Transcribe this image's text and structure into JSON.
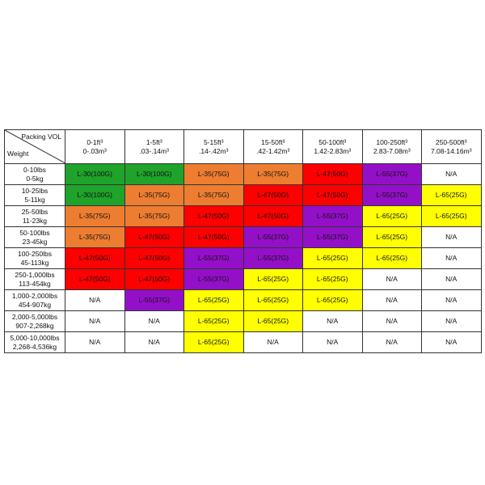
{
  "table": {
    "corner": {
      "top": "Packing VOL",
      "bottom": "Weight"
    },
    "columns": [
      [
        "0-1ft³",
        "0-.03m³"
      ],
      [
        "1-5ft³",
        ".03-.14m³"
      ],
      [
        "5-15ft³",
        ".14-.42m³"
      ],
      [
        "15-50ft³",
        ".42-1.42m³"
      ],
      [
        "50-100ft³",
        "1.42-2.83m³"
      ],
      [
        "100-250ft³",
        "2.83-7.08m³"
      ],
      [
        "250-500ft³",
        "7.08-14.16m³"
      ]
    ],
    "rows": [
      {
        "label": [
          "0-10lbs",
          "0-5kg"
        ],
        "cells": [
          {
            "text": "L-30(100G)",
            "color": "#1fa32a"
          },
          {
            "text": "L-30(100G)",
            "color": "#1fa32a"
          },
          {
            "text": "L-35(75G)",
            "color": "#ed7d31"
          },
          {
            "text": "L-35(75G)",
            "color": "#ed7d31"
          },
          {
            "text": "L-47(50G)",
            "color": "#ff0000"
          },
          {
            "text": "L-55(37G)",
            "color": "#9410c8"
          },
          {
            "text": "N/A",
            "color": "#ffffff"
          }
        ]
      },
      {
        "label": [
          "10-25lbs",
          "5-11kg"
        ],
        "cells": [
          {
            "text": "L-30(100G)",
            "color": "#1fa32a"
          },
          {
            "text": "L-35(75G)",
            "color": "#ed7d31"
          },
          {
            "text": "L-35(75G)",
            "color": "#ed7d31"
          },
          {
            "text": "L-47(50G)",
            "color": "#ff0000"
          },
          {
            "text": "L-47(50G)",
            "color": "#ff0000"
          },
          {
            "text": "L-55(37G)",
            "color": "#9410c8"
          },
          {
            "text": "L-65(25G)",
            "color": "#ffff00"
          }
        ]
      },
      {
        "label": [
          "25-50lbs",
          "11-23kg"
        ],
        "cells": [
          {
            "text": "L-35(75G)",
            "color": "#ed7d31"
          },
          {
            "text": "L-35(75G)",
            "color": "#ed7d31"
          },
          {
            "text": "L-47(50G)",
            "color": "#ff0000"
          },
          {
            "text": "L-47(50G)",
            "color": "#ff0000"
          },
          {
            "text": "L-55(37G)",
            "color": "#9410c8"
          },
          {
            "text": "L-65(25G)",
            "color": "#ffff00"
          },
          {
            "text": "L-65(25G)",
            "color": "#ffff00"
          }
        ]
      },
      {
        "label": [
          "50-100lbs",
          "23-45kg"
        ],
        "cells": [
          {
            "text": "L-35(75G)",
            "color": "#ed7d31"
          },
          {
            "text": "L-47(50G)",
            "color": "#ff0000"
          },
          {
            "text": "L-47(50G)",
            "color": "#ff0000"
          },
          {
            "text": "L-55(37G)",
            "color": "#9410c8"
          },
          {
            "text": "L-55(37G)",
            "color": "#9410c8"
          },
          {
            "text": "L-65(25G)",
            "color": "#ffff00"
          },
          {
            "text": "N/A",
            "color": "#ffffff"
          }
        ]
      },
      {
        "label": [
          "100-250lbs",
          "45-113kg"
        ],
        "cells": [
          {
            "text": "L-47(50G)",
            "color": "#ff0000"
          },
          {
            "text": "L-47(50G)",
            "color": "#ff0000"
          },
          {
            "text": "L-55(37G)",
            "color": "#9410c8"
          },
          {
            "text": "L-55(37G)",
            "color": "#9410c8"
          },
          {
            "text": "L-65(25G)",
            "color": "#ffff00"
          },
          {
            "text": "L-65(25G)",
            "color": "#ffff00"
          },
          {
            "text": "N/A",
            "color": "#ffffff"
          }
        ]
      },
      {
        "label": [
          "250-1,000lbs",
          "113-454kg"
        ],
        "cells": [
          {
            "text": "L-47(50G)",
            "color": "#ff0000"
          },
          {
            "text": "L-47(50G)",
            "color": "#ff0000"
          },
          {
            "text": "L-55(37G)",
            "color": "#9410c8"
          },
          {
            "text": "L-65(25G)",
            "color": "#ffff00"
          },
          {
            "text": "L-65(25G)",
            "color": "#ffff00"
          },
          {
            "text": "N/A",
            "color": "#ffffff"
          },
          {
            "text": "N/A",
            "color": "#ffffff"
          }
        ]
      },
      {
        "label": [
          "1,000-2,000lbs",
          "454-907kg"
        ],
        "cells": [
          {
            "text": "N/A",
            "color": "#ffffff"
          },
          {
            "text": "L-55(37G)",
            "color": "#9410c8"
          },
          {
            "text": "L-65(25G)",
            "color": "#ffff00"
          },
          {
            "text": "L-65(25G)",
            "color": "#ffff00"
          },
          {
            "text": "L-65(25G)",
            "color": "#ffff00"
          },
          {
            "text": "N/A",
            "color": "#ffffff"
          },
          {
            "text": "N/A",
            "color": "#ffffff"
          }
        ]
      },
      {
        "label": [
          "2,000-5,000lbs",
          "907-2,268kg"
        ],
        "cells": [
          {
            "text": "N/A",
            "color": "#ffffff"
          },
          {
            "text": "N/A",
            "color": "#ffffff"
          },
          {
            "text": "L-65(25G)",
            "color": "#ffff00"
          },
          {
            "text": "L-65(25G)",
            "color": "#ffff00"
          },
          {
            "text": "N/A",
            "color": "#ffffff"
          },
          {
            "text": "N/A",
            "color": "#ffffff"
          },
          {
            "text": "N/A",
            "color": "#ffffff"
          }
        ]
      },
      {
        "label": [
          "5,000-10,000lbs",
          "2,268-4,536kg"
        ],
        "cells": [
          {
            "text": "N/A",
            "color": "#ffffff"
          },
          {
            "text": "N/A",
            "color": "#ffffff"
          },
          {
            "text": "L-65(25G)",
            "color": "#ffff00"
          },
          {
            "text": "N/A",
            "color": "#ffffff"
          },
          {
            "text": "N/A",
            "color": "#ffffff"
          },
          {
            "text": "N/A",
            "color": "#ffffff"
          },
          {
            "text": "N/A",
            "color": "#ffffff"
          }
        ]
      }
    ]
  }
}
